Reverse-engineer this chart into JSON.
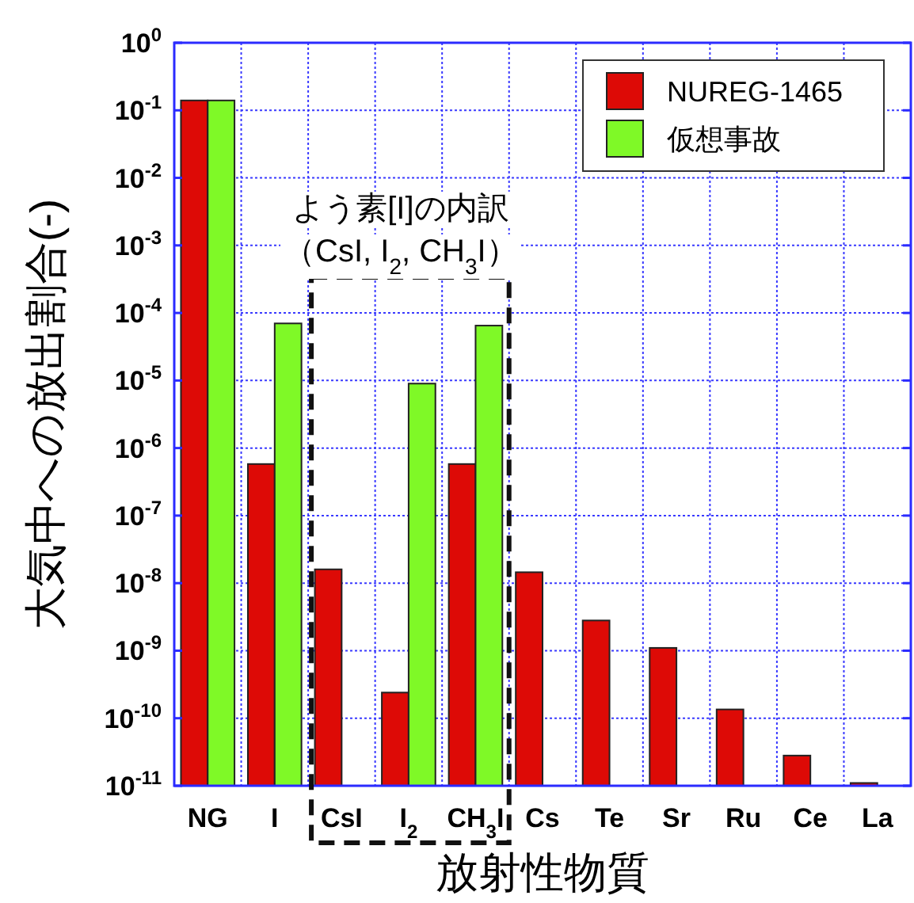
{
  "chart_data": {
    "type": "bar",
    "ylabel": "大気中への放出割合(-)",
    "xlabel": "放射性物質",
    "categories": [
      "NG",
      "I",
      "CsI",
      "I$_{2}$",
      "CH$_{3}$I",
      "Cs",
      "Te",
      "Sr",
      "Ru",
      "Ce",
      "La"
    ],
    "series": [
      {
        "name": "NUREG-1465",
        "color": "#dd0a06",
        "values": [
          0.14,
          5.8e-07,
          1.6e-08,
          2.4e-10,
          5.8e-07,
          1.45e-08,
          2.8e-09,
          1.1e-09,
          1.35e-10,
          2.8e-11,
          1.1e-11
        ]
      },
      {
        "name": "仮想事故",
        "color": "#7ff927",
        "values": [
          0.14,
          7e-05,
          null,
          9e-06,
          6.5e-05,
          null,
          null,
          null,
          null,
          null,
          null
        ]
      }
    ],
    "log": true,
    "ylim": [
      1e-11,
      1
    ],
    "yticks": [
      {
        "value": 1e-11,
        "label": "10$^{-11}$"
      },
      {
        "value": 1e-10,
        "label": "10$^{-10}$"
      },
      {
        "value": 1e-09,
        "label": "10$^{-9}$"
      },
      {
        "value": 1e-08,
        "label": "10$^{-8}$"
      },
      {
        "value": 1e-07,
        "label": "10$^{-7}$"
      },
      {
        "value": 1e-06,
        "label": "10$^{-6}$"
      },
      {
        "value": 1e-05,
        "label": "10$^{-5}$"
      },
      {
        "value": 0.0001,
        "label": "10$^{-4}$"
      },
      {
        "value": 0.001,
        "label": "10$^{-3}$"
      },
      {
        "value": 0.01,
        "label": "10$^{-2}$"
      },
      {
        "value": 0.1,
        "label": "10$^{-1}$"
      },
      {
        "value": 1,
        "label": "10$^{0}$"
      }
    ],
    "grid": true,
    "legend": "top right",
    "annotations": [
      "よう素[I]の内訳",
      "（CsI, I$_{2}$, CH$_{3}$I）"
    ]
  }
}
